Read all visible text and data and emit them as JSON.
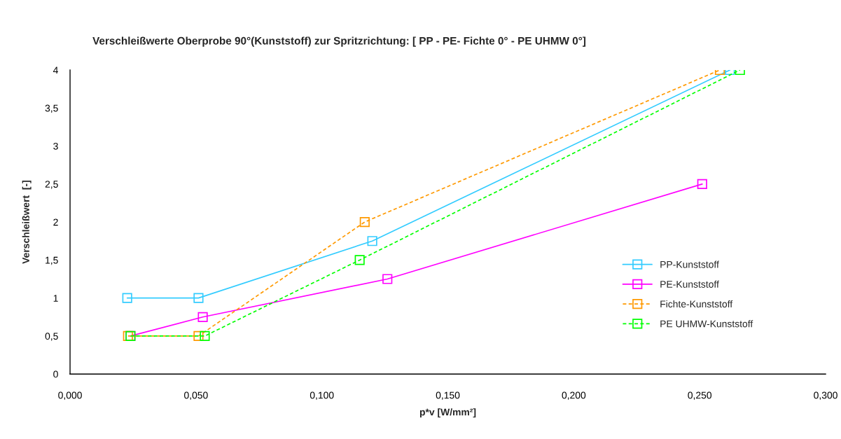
{
  "chart_data": {
    "type": "line",
    "title": "Verschleißwerte Oberprobe 90°(Kunststoff) zur Spritzrichtung: [ PP - PE- Fichte 0° - PE UHMW 0°]",
    "xlabel": "p*v [W/mm²]",
    "ylabel": "Verschleißwert  [-]",
    "xlim": [
      0,
      0.3
    ],
    "ylim": [
      0,
      4
    ],
    "xticks": [
      {
        "value": 0,
        "label": "0,000"
      },
      {
        "value": 0.05,
        "label": "0,050"
      },
      {
        "value": 0.1,
        "label": "0,100"
      },
      {
        "value": 0.15,
        "label": "0,150"
      },
      {
        "value": 0.2,
        "label": "0,200"
      },
      {
        "value": 0.25,
        "label": "0,250"
      },
      {
        "value": 0.3,
        "label": "0,300"
      }
    ],
    "yticks": [
      0,
      {
        "value": 0.5,
        "label": "0,5"
      },
      1,
      {
        "value": 1.5,
        "label": "1,5"
      },
      2,
      {
        "value": 2.5,
        "label": "2,5"
      },
      3,
      {
        "value": 3.5,
        "label": "3,5"
      },
      4
    ],
    "grid": false,
    "legend": "right",
    "marker": "square",
    "series": [
      {
        "name": "PP-Kunststoff",
        "color": "#33ccff",
        "line_style": "solid",
        "x": [
          0.0227,
          0.051,
          0.12,
          0.262
        ],
        "values": [
          1,
          1,
          1.75,
          4
        ]
      },
      {
        "name": "PE-Kunststoff",
        "color": "#ff00ff",
        "line_style": "solid",
        "x": [
          0.024,
          0.0527,
          0.126,
          0.251
        ],
        "values": [
          0.5,
          0.75,
          1.25,
          2.5
        ]
      },
      {
        "name": "Fichte-Kunststoff",
        "color": "#ff9900",
        "line_style": "dashed",
        "x": [
          0.023,
          0.051,
          0.117,
          0.258
        ],
        "values": [
          0.5,
          0.5,
          2,
          4
        ]
      },
      {
        "name": "PE UHMW-Kunststoff",
        "color": "#00ff00",
        "line_style": "dashed",
        "x": [
          0.024,
          0.0535,
          0.115,
          0.266
        ],
        "values": [
          0.5,
          0.5,
          1.5,
          4
        ]
      }
    ]
  }
}
